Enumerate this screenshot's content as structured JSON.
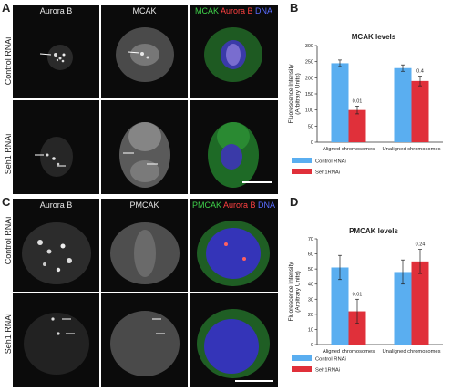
{
  "panels": {
    "A": {
      "letter": "A",
      "columns": [
        "Aurora B",
        "MCAK"
      ],
      "merge": {
        "a": "MCAK",
        "b": "Aurora B",
        "c": "DNA"
      },
      "rows": [
        "Control RNAi",
        "Seh1 RNAi"
      ]
    },
    "C": {
      "letter": "C",
      "columns": [
        "Aurora B",
        "PMCAK"
      ],
      "merge": {
        "a": "PMCAK",
        "b": "Aurora B",
        "c": "DNA"
      },
      "rows": [
        "Control RNAi",
        "Seh1 RNAi"
      ]
    },
    "B": {
      "letter": "B"
    },
    "D": {
      "letter": "D"
    }
  },
  "chart_data": [
    {
      "type": "bar",
      "title": "MCAK levels",
      "ylabel": "Fluorescence Intensity (Arbitrary Units)",
      "ylabel_lines": [
        "Fluorescence Intensity",
        "(Arbitrary Units)"
      ],
      "categories": [
        "Aligned chromosomes",
        "Unaligned chromosomes"
      ],
      "ylim": [
        0,
        300
      ],
      "yticks": [
        0,
        50,
        100,
        150,
        200,
        250,
        300
      ],
      "series": [
        {
          "name": "Control RNAi",
          "color": "#5aaef0",
          "values": [
            245,
            230
          ],
          "errors": [
            10,
            10
          ]
        },
        {
          "name": "Seh1RNAi",
          "color": "#e0303a",
          "values": [
            100,
            190
          ],
          "errors": [
            12,
            15
          ]
        }
      ],
      "annotations": [
        "0.01",
        "0.4"
      ],
      "legend": "bottom"
    },
    {
      "type": "bar",
      "title": "PMCAK levels",
      "ylabel": "Fluorescence Intensity (Arbitrary Units)",
      "ylabel_lines": [
        "Fluorescence Intensity",
        "(Arbitrary Units)"
      ],
      "categories": [
        "Aligned chromosomes",
        "Unaligned chromosomes"
      ],
      "ylim": [
        0,
        70
      ],
      "yticks": [
        0,
        10,
        20,
        30,
        40,
        50,
        60,
        70
      ],
      "series": [
        {
          "name": "Control RNAi",
          "color": "#5aaef0",
          "values": [
            51,
            48
          ],
          "errors": [
            8,
            8
          ]
        },
        {
          "name": "Seh1RNAi",
          "color": "#e0303a",
          "values": [
            22,
            55
          ],
          "errors": [
            8,
            8
          ]
        }
      ],
      "annotations": [
        "0.01",
        "0.24"
      ],
      "legend": "bottom"
    }
  ]
}
